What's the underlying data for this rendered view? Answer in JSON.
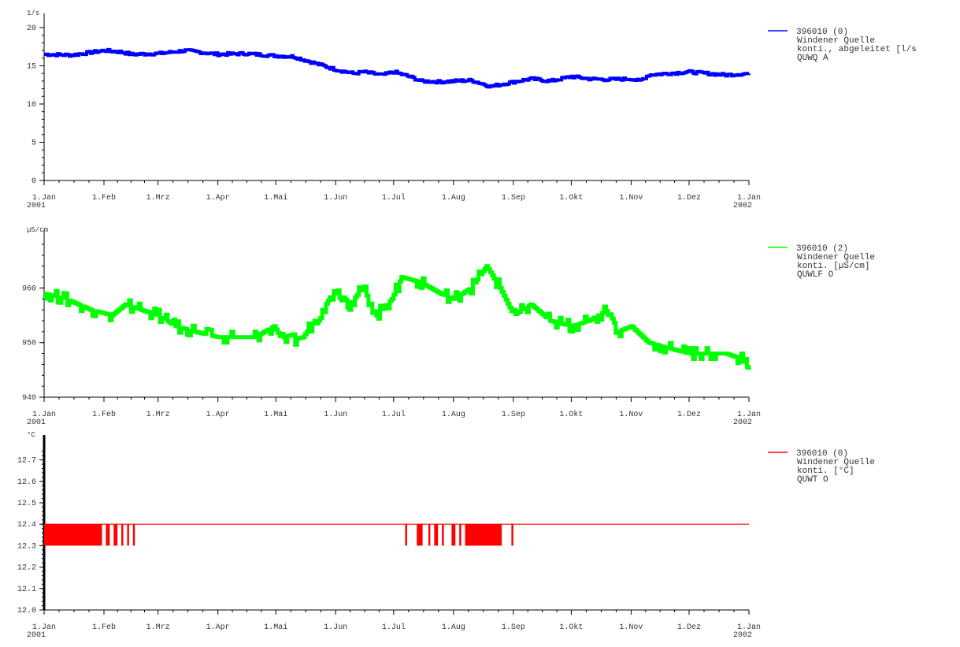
{
  "chart_data": [
    {
      "type": "line",
      "unit": "1/s",
      "ylim": [
        0,
        20
      ],
      "yticks": [
        0,
        5,
        10,
        15,
        20
      ],
      "xlim": [
        "2001-01-01",
        "2002-01-01"
      ],
      "xticks": [
        {
          "date": "2001-01-01",
          "label": "1.Jan",
          "year": "2001"
        },
        {
          "date": "2001-02-01",
          "label": "1.Feb"
        },
        {
          "date": "2001-03-01",
          "label": "1.Mrz"
        },
        {
          "date": "2001-04-01",
          "label": "1.Apr"
        },
        {
          "date": "2001-05-01",
          "label": "1.Mai"
        },
        {
          "date": "2001-06-01",
          "label": "1.Jun"
        },
        {
          "date": "2001-07-01",
          "label": "1.Jul"
        },
        {
          "date": "2001-08-01",
          "label": "1.Aug"
        },
        {
          "date": "2001-09-01",
          "label": "1.Sep"
        },
        {
          "date": "2001-10-01",
          "label": "1.Okt"
        },
        {
          "date": "2001-11-01",
          "label": "1.Nov"
        },
        {
          "date": "2001-12-01",
          "label": "1.Dez"
        },
        {
          "date": "2002-01-01",
          "label": "1.Jan",
          "year": "2002"
        }
      ],
      "grid": false,
      "legend_position": "right",
      "series": [
        {
          "name": "396010 (0)",
          "color": "#0000ff",
          "legend_lines": [
            "396010 (0)",
            "Windener Quelle",
            "konti., abgeleitet [l/s",
            "QUWQ  A"
          ],
          "x": [
            "2001-01-01",
            "2001-01-15",
            "2001-02-01",
            "2001-02-10",
            "2001-02-15",
            "2001-03-01",
            "2001-03-15",
            "2001-04-01",
            "2001-04-15",
            "2001-05-01",
            "2001-05-10",
            "2001-05-15",
            "2001-06-01",
            "2001-06-10",
            "2001-06-15",
            "2001-06-25",
            "2001-07-01",
            "2001-07-10",
            "2001-07-15",
            "2001-07-25",
            "2001-08-01",
            "2001-08-10",
            "2001-08-20",
            "2001-09-01",
            "2001-09-10",
            "2001-09-20",
            "2001-10-01",
            "2001-10-10",
            "2001-10-20",
            "2001-11-01",
            "2001-11-05",
            "2001-11-10",
            "2001-11-20",
            "2001-12-01",
            "2001-12-10",
            "2001-12-20",
            "2002-01-01"
          ],
          "y": [
            16.5,
            16.4,
            17.0,
            16.8,
            16.5,
            16.6,
            17.0,
            16.5,
            16.6,
            16.3,
            16.2,
            15.8,
            14.5,
            14.0,
            14.2,
            13.8,
            14.2,
            13.5,
            13.0,
            12.9,
            13.0,
            13.1,
            12.3,
            12.9,
            13.3,
            13.0,
            13.6,
            13.3,
            13.2,
            13.3,
            13.0,
            13.8,
            14.0,
            14.2,
            14.0,
            13.8,
            14.0
          ]
        }
      ]
    },
    {
      "type": "line",
      "unit": "µS/cm",
      "ylim": [
        940,
        968
      ],
      "yticks": [
        940,
        950,
        960
      ],
      "xlim": [
        "2001-01-01",
        "2002-01-01"
      ],
      "xticks": [
        {
          "date": "2001-01-01",
          "label": "1.Jan",
          "year": "2001"
        },
        {
          "date": "2001-02-01",
          "label": "1.Feb"
        },
        {
          "date": "2001-03-01",
          "label": "1.Mrz"
        },
        {
          "date": "2001-04-01",
          "label": "1.Apr"
        },
        {
          "date": "2001-05-01",
          "label": "1.Mai"
        },
        {
          "date": "2001-06-01",
          "label": "1.Jun"
        },
        {
          "date": "2001-07-01",
          "label": "1.Jul"
        },
        {
          "date": "2001-08-01",
          "label": "1.Aug"
        },
        {
          "date": "2001-09-01",
          "label": "1.Sep"
        },
        {
          "date": "2001-10-01",
          "label": "1.Okt"
        },
        {
          "date": "2001-11-01",
          "label": "1.Nov"
        },
        {
          "date": "2001-12-01",
          "label": "1.Dez"
        },
        {
          "date": "2002-01-01",
          "label": "1.Jan",
          "year": "2002"
        }
      ],
      "grid": false,
      "legend_position": "right",
      "series": [
        {
          "name": "396010 (2)",
          "color": "#00ff00",
          "legend_lines": [
            "396010 (2)",
            "Windener Quelle",
            "konti. [µS/cm]",
            "QUWLF  O"
          ],
          "x": [
            "2001-01-01",
            "2001-01-12",
            "2001-01-25",
            "2001-02-05",
            "2001-02-12",
            "2001-02-20",
            "2001-03-01",
            "2001-03-10",
            "2001-03-20",
            "2001-04-01",
            "2001-04-10",
            "2001-04-20",
            "2001-04-30",
            "2001-05-05",
            "2001-05-15",
            "2001-05-25",
            "2001-06-01",
            "2001-06-08",
            "2001-06-15",
            "2001-06-22",
            "2001-06-30",
            "2001-07-05",
            "2001-07-15",
            "2001-07-25",
            "2001-08-01",
            "2001-08-10",
            "2001-08-18",
            "2001-08-25",
            "2001-09-01",
            "2001-09-10",
            "2001-09-20",
            "2001-10-01",
            "2001-10-10",
            "2001-10-20",
            "2001-10-25",
            "2001-11-01",
            "2001-11-10",
            "2001-11-20",
            "2001-12-01",
            "2001-12-10",
            "2001-12-20",
            "2001-12-28",
            "2002-01-01"
          ],
          "y": [
            959,
            958,
            956,
            955,
            957,
            956,
            955,
            953,
            952,
            951,
            951,
            951,
            953,
            950,
            951,
            956,
            960,
            957,
            960,
            955,
            958,
            962,
            961,
            959,
            958,
            960,
            964,
            960,
            955,
            957,
            954,
            953,
            954,
            956,
            952,
            953,
            950,
            949,
            948,
            948,
            948,
            947,
            945
          ]
        }
      ]
    },
    {
      "type": "line",
      "unit": "°C",
      "ylim": [
        12.0,
        12.75
      ],
      "yticks": [
        12.0,
        12.1,
        12.2,
        12.3,
        12.4,
        12.5,
        12.6,
        12.7
      ],
      "xlim": [
        "2001-01-01",
        "2002-01-01"
      ],
      "xticks": [
        {
          "date": "2001-01-01",
          "label": "1.Jan",
          "year": "2001"
        },
        {
          "date": "2001-02-01",
          "label": "1.Feb"
        },
        {
          "date": "2001-03-01",
          "label": "1.Mrz"
        },
        {
          "date": "2001-04-01",
          "label": "1.Apr"
        },
        {
          "date": "2001-05-01",
          "label": "1.Mai"
        },
        {
          "date": "2001-06-01",
          "label": "1.Jun"
        },
        {
          "date": "2001-07-01",
          "label": "1.Jul"
        },
        {
          "date": "2001-08-01",
          "label": "1.Aug"
        },
        {
          "date": "2001-09-01",
          "label": "1.Sep"
        },
        {
          "date": "2001-10-01",
          "label": "1.Okt"
        },
        {
          "date": "2001-11-01",
          "label": "1.Nov"
        },
        {
          "date": "2001-12-01",
          "label": "1.Dez"
        },
        {
          "date": "2002-01-01",
          "label": "1.Jan",
          "year": "2002"
        }
      ],
      "grid": false,
      "legend_position": "right",
      "series": [
        {
          "name": "396010 (0)",
          "color": "#ff0000",
          "legend_lines": [
            "396010 (0)",
            "Windener Quelle",
            "konti. [°C]",
            "QUWT  O"
          ],
          "baseline": 12.4,
          "dip_value": 12.3,
          "dips": [
            [
              "2001-01-01",
              "2001-01-31"
            ],
            [
              "2001-02-02",
              "2001-02-04"
            ],
            [
              "2001-02-06",
              "2001-02-08"
            ],
            [
              "2001-02-10",
              "2001-02-11"
            ],
            [
              "2001-02-13",
              "2001-02-14"
            ],
            [
              "2001-02-16",
              "2001-02-17"
            ],
            [
              "2001-07-07",
              "2001-07-08"
            ],
            [
              "2001-07-13",
              "2001-07-16"
            ],
            [
              "2001-07-19",
              "2001-07-20"
            ],
            [
              "2001-07-22",
              "2001-07-24"
            ],
            [
              "2001-07-26",
              "2001-07-27"
            ],
            [
              "2001-07-31",
              "2001-08-02"
            ],
            [
              "2001-08-04",
              "2001-08-05"
            ],
            [
              "2001-08-07",
              "2001-08-26"
            ],
            [
              "2001-08-31",
              "2001-09-01"
            ]
          ]
        }
      ]
    }
  ]
}
